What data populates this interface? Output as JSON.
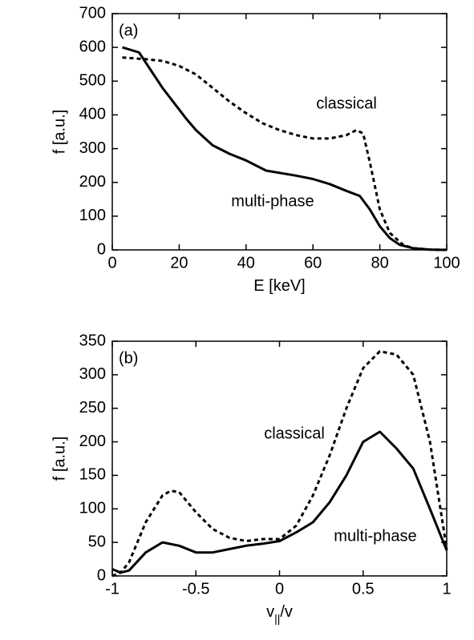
{
  "chart_data": [
    {
      "type": "line",
      "panel_label": "(a)",
      "xlabel": [
        "E [keV]"
      ],
      "ylabel": "f [a.u.]",
      "xlim": [
        0,
        100
      ],
      "xticks": [
        0,
        20,
        40,
        60,
        80,
        100
      ],
      "ylim": [
        0,
        700
      ],
      "yticks": [
        0,
        100,
        200,
        300,
        400,
        500,
        600,
        700
      ],
      "grid": false,
      "series": [
        {
          "name": "multi-phase",
          "color": "#000000",
          "line_style": "solid",
          "x": [
            3,
            8,
            15,
            22,
            25,
            30,
            35,
            40,
            46,
            55,
            60,
            65,
            70,
            74,
            77,
            80,
            83,
            86,
            90,
            95,
            100
          ],
          "values": [
            600,
            585,
            480,
            390,
            355,
            310,
            285,
            265,
            235,
            220,
            210,
            195,
            175,
            160,
            120,
            70,
            35,
            15,
            5,
            1,
            0
          ]
        },
        {
          "name": "classical",
          "color": "#000000",
          "line_style": "dashed",
          "x": [
            3,
            10,
            15,
            20,
            25,
            30,
            35,
            40,
            45,
            50,
            55,
            60,
            65,
            70,
            73,
            75,
            77,
            80,
            83,
            87,
            90,
            95,
            100
          ],
          "values": [
            570,
            565,
            560,
            545,
            520,
            480,
            440,
            405,
            375,
            355,
            340,
            330,
            330,
            340,
            355,
            345,
            260,
            120,
            50,
            15,
            5,
            1,
            0
          ]
        }
      ]
    },
    {
      "type": "line",
      "panel_label": "(b)",
      "xlabel": [
        "v",
        "||",
        "/v"
      ],
      "ylabel": "f [a.u.]",
      "xlim": [
        -1,
        1
      ],
      "xticks": [
        -1,
        -0.5,
        0,
        0.5,
        1
      ],
      "ylim": [
        0,
        350
      ],
      "yticks": [
        0,
        50,
        100,
        150,
        200,
        250,
        300,
        350
      ],
      "grid": false,
      "series": [
        {
          "name": "multi-phase",
          "color": "#000000",
          "line_style": "solid",
          "x": [
            -1,
            -0.95,
            -0.9,
            -0.8,
            -0.7,
            -0.6,
            -0.5,
            -0.4,
            -0.3,
            -0.2,
            -0.1,
            0,
            0.1,
            0.2,
            0.3,
            0.4,
            0.5,
            0.6,
            0.7,
            0.8,
            0.9,
            1
          ],
          "values": [
            10,
            5,
            8,
            35,
            50,
            45,
            35,
            35,
            40,
            45,
            48,
            52,
            65,
            80,
            110,
            150,
            200,
            215,
            190,
            160,
            100,
            38
          ]
        },
        {
          "name": "classical",
          "color": "#000000",
          "line_style": "dashed",
          "x": [
            -1,
            -0.95,
            -0.9,
            -0.8,
            -0.7,
            -0.65,
            -0.6,
            -0.5,
            -0.4,
            -0.3,
            -0.2,
            -0.1,
            0,
            0.1,
            0.2,
            0.3,
            0.4,
            0.5,
            0.6,
            0.7,
            0.8,
            0.9,
            1
          ],
          "values": [
            0,
            5,
            20,
            80,
            120,
            127,
            125,
            95,
            70,
            57,
            52,
            55,
            55,
            75,
            120,
            180,
            250,
            310,
            335,
            330,
            300,
            200,
            40
          ]
        }
      ]
    }
  ]
}
